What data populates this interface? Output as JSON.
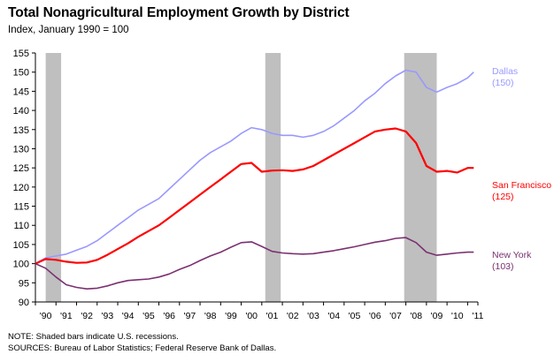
{
  "header": {
    "title": "Total Nonagricultural Employment Growth by District",
    "subtitle": "Index, January 1990 = 100"
  },
  "notes": {
    "note": "NOTE: Shaded bars indicate U.S. recessions.",
    "sources": "SOURCES: Bureau of Labor Statistics; Federal Reserve Bank of Dallas."
  },
  "chart_data": {
    "type": "line",
    "title": "Total Nonagricultural Employment Growth by District",
    "ylabel": "Index, January 1990 = 100",
    "ylim": [
      90,
      155
    ],
    "yticks": [
      90,
      95,
      100,
      105,
      110,
      115,
      120,
      125,
      130,
      135,
      140,
      145,
      150,
      155
    ],
    "xlim": [
      1990.0,
      2011.5
    ],
    "xtick_labels": [
      "'90",
      "'91",
      "'92",
      "'93",
      "'94",
      "'95",
      "'96",
      "'97",
      "'98",
      "'99",
      "'00",
      "'01",
      "'02",
      "'03",
      "'04",
      "'05",
      "'06",
      "'07",
      "'08",
      "'09",
      "'10",
      "'11"
    ],
    "grid": false,
    "recessions": [
      [
        1990.5,
        1991.25
      ],
      [
        2001.17,
        2001.92
      ],
      [
        2007.92,
        2009.5
      ]
    ],
    "series": [
      {
        "name": "Dallas",
        "end_label": "(150)",
        "color": "#9999ff",
        "x": [
          1990.0,
          1990.5,
          1991.0,
          1991.5,
          1992.0,
          1992.5,
          1993.0,
          1993.5,
          1994.0,
          1994.5,
          1995.0,
          1995.5,
          1996.0,
          1996.5,
          1997.0,
          1997.5,
          1998.0,
          1998.5,
          1999.0,
          1999.5,
          2000.0,
          2000.5,
          2001.0,
          2001.5,
          2002.0,
          2002.5,
          2003.0,
          2003.5,
          2004.0,
          2004.5,
          2005.0,
          2005.5,
          2006.0,
          2006.5,
          2007.0,
          2007.5,
          2008.0,
          2008.5,
          2009.0,
          2009.5,
          2010.0,
          2010.5,
          2011.0,
          2011.3
        ],
        "values": [
          100,
          101.5,
          102,
          102.5,
          103.5,
          104.5,
          106,
          108,
          110,
          112,
          114,
          115.5,
          117,
          119.5,
          122,
          124.5,
          127,
          129,
          130.5,
          132,
          134,
          135.5,
          135,
          134,
          133.5,
          133.5,
          133,
          133.5,
          134.5,
          136,
          138,
          140,
          142.5,
          144.5,
          147,
          149,
          150.5,
          150,
          146,
          144.8,
          146,
          147,
          148.5,
          150
        ]
      },
      {
        "name": "San Francisco",
        "end_label": "(125)",
        "color": "#ff0000",
        "x": [
          1990.0,
          1990.5,
          1991.0,
          1991.5,
          1992.0,
          1992.5,
          1993.0,
          1993.5,
          1994.0,
          1994.5,
          1995.0,
          1995.5,
          1996.0,
          1996.5,
          1997.0,
          1997.5,
          1998.0,
          1998.5,
          1999.0,
          1999.5,
          2000.0,
          2000.5,
          2001.0,
          2001.5,
          2002.0,
          2002.5,
          2003.0,
          2003.5,
          2004.0,
          2004.5,
          2005.0,
          2005.5,
          2006.0,
          2006.5,
          2007.0,
          2007.5,
          2008.0,
          2008.5,
          2009.0,
          2009.5,
          2010.0,
          2010.5,
          2011.0,
          2011.3
        ],
        "values": [
          100,
          101.2,
          101,
          100.5,
          100.2,
          100.3,
          101,
          102.3,
          103.8,
          105.3,
          107,
          108.5,
          110,
          112,
          114,
          116,
          118,
          120,
          122,
          124,
          126,
          126.3,
          124,
          124.3,
          124.4,
          124.2,
          124.6,
          125.5,
          127,
          128.5,
          130,
          131.5,
          133,
          134.5,
          135,
          135.3,
          134.5,
          131.5,
          125.5,
          124,
          124.2,
          123.8,
          125,
          125
        ]
      },
      {
        "name": "New York",
        "end_label": "(103)",
        "color": "#7b3070",
        "x": [
          1990.0,
          1990.5,
          1991.0,
          1991.5,
          1992.0,
          1992.5,
          1993.0,
          1993.5,
          1994.0,
          1994.5,
          1995.0,
          1995.5,
          1996.0,
          1996.5,
          1997.0,
          1997.5,
          1998.0,
          1998.5,
          1999.0,
          1999.5,
          2000.0,
          2000.5,
          2001.0,
          2001.5,
          2002.0,
          2002.5,
          2003.0,
          2003.5,
          2004.0,
          2004.5,
          2005.0,
          2005.5,
          2006.0,
          2006.5,
          2007.0,
          2007.5,
          2008.0,
          2008.5,
          2009.0,
          2009.5,
          2010.0,
          2010.5,
          2011.0,
          2011.3
        ],
        "values": [
          100,
          98.8,
          96.5,
          94.5,
          93.8,
          93.4,
          93.6,
          94.2,
          95,
          95.6,
          95.8,
          96,
          96.5,
          97.3,
          98.5,
          99.5,
          100.8,
          102,
          103,
          104.3,
          105.5,
          105.7,
          104.5,
          103.2,
          102.8,
          102.6,
          102.5,
          102.6,
          103,
          103.4,
          103.9,
          104.4,
          105,
          105.6,
          106,
          106.6,
          106.8,
          105.5,
          103,
          102.2,
          102.5,
          102.8,
          103,
          103
        ]
      }
    ]
  }
}
